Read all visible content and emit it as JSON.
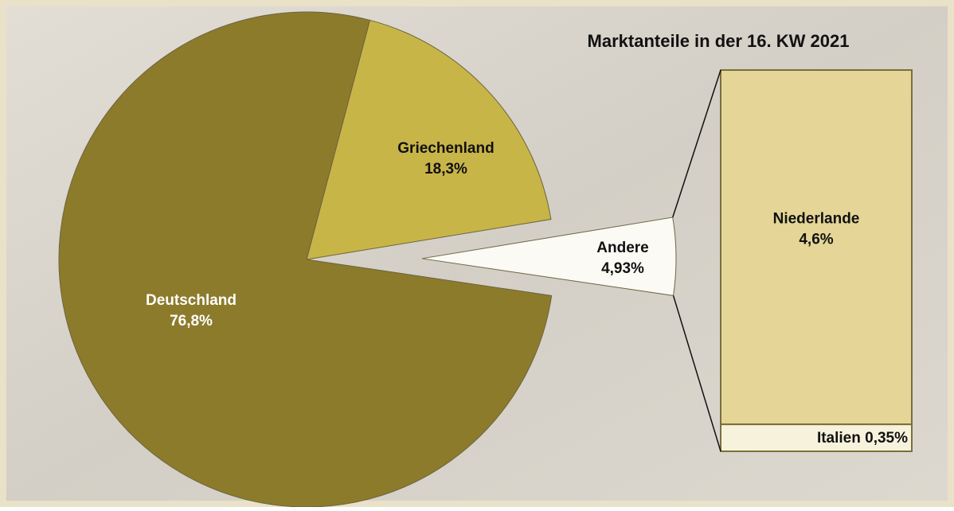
{
  "chart_data": {
    "type": "pie-of-bar",
    "title": "Marktanteile in der 16. KW 2021",
    "categories": [
      "Griechenland",
      "Andere",
      "Deutschland"
    ],
    "values": [
      18.3,
      4.93,
      76.8
    ],
    "value_labels": [
      "18,3%",
      "4,93%",
      "76,8%"
    ],
    "colors": [
      "#c8b548",
      "#fbfaf4",
      "#8c7b2b"
    ],
    "breakdown": {
      "categories": [
        "Niederlande",
        "Italien"
      ],
      "values": [
        4.6,
        0.35
      ],
      "value_labels": [
        "4,6%",
        "0,35%"
      ],
      "colors": [
        "#e5d697",
        "#f7f2dc"
      ]
    }
  }
}
